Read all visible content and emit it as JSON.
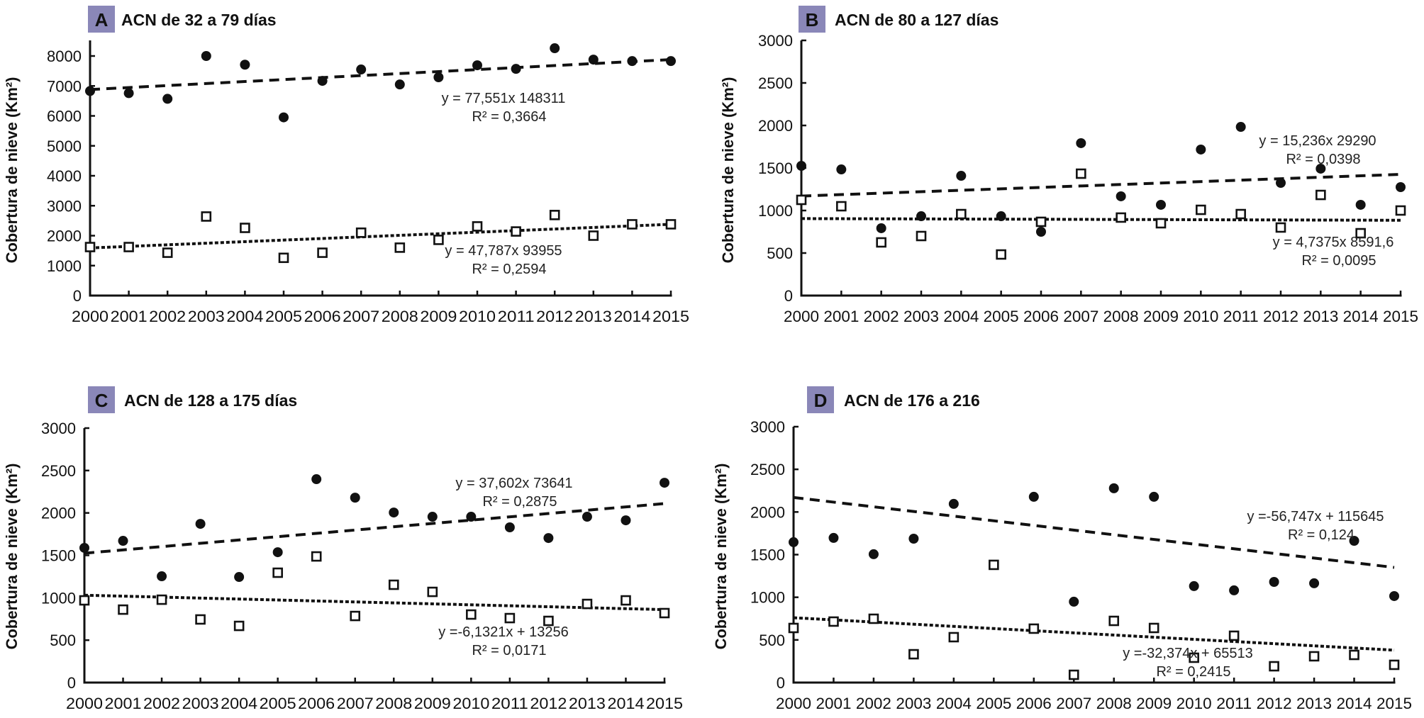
{
  "figure": {
    "badge_color": "#8a87b8",
    "marker_color": "#111111"
  },
  "chart_data": [
    {
      "type": "scatter",
      "panel": "A",
      "title": "ACN de 32 a 79 días",
      "xlabel": "",
      "ylabel": "Cobertura de nieve (Km²)",
      "x": [
        2000,
        2001,
        2002,
        2003,
        2004,
        2005,
        2006,
        2007,
        2008,
        2009,
        2010,
        2011,
        2012,
        2013,
        2014,
        2015
      ],
      "x_tick_labels": [
        "2000",
        "2001",
        "2002",
        "2003",
        "2004",
        "2005",
        "2006",
        "2007",
        "2008",
        "2009",
        "2010",
        "2011",
        "2012",
        "2013",
        "2014",
        "2015"
      ],
      "ylim": [
        0,
        8000
      ],
      "y_ticks": [
        0,
        1000,
        2000,
        3000,
        4000,
        5000,
        6000,
        7000,
        8000
      ],
      "y_tick_labels": [
        "0",
        "1000",
        "2000",
        "3000",
        "4000",
        "5000",
        "6000",
        "7000",
        "8000"
      ],
      "grid": false,
      "series": [
        {
          "name": "filled-circles",
          "marker": "circle-filled",
          "values": [
            6830,
            6760,
            6570,
            8000,
            7710,
            5950,
            7170,
            7550,
            7050,
            7290,
            7690,
            7570,
            8260,
            7880,
            7830,
            7830
          ],
          "trend": {
            "style": "dashed",
            "start": 6880,
            "end": 7880
          },
          "equation": "y = 77,551x 148311",
          "r2": "R² = 0,3664"
        },
        {
          "name": "open-squares",
          "marker": "square-open",
          "values": [
            1620,
            1620,
            1430,
            2640,
            2260,
            1260,
            1430,
            2100,
            1600,
            1860,
            2310,
            2140,
            2690,
            2000,
            2380,
            2380
          ],
          "trend": {
            "style": "dotted",
            "start": 1590,
            "end": 2380
          },
          "equation": "y = 47,787x 93955",
          "r2": "R² = 0,2594"
        }
      ]
    },
    {
      "type": "scatter",
      "panel": "B",
      "title": "ACN de 80  a 127 días",
      "xlabel": "",
      "ylabel": "Cobertura de nieve (Km²)",
      "x": [
        2000,
        2001,
        2002,
        2003,
        2004,
        2005,
        2006,
        2007,
        2008,
        2009,
        2010,
        2011,
        2012,
        2013,
        2014,
        2015
      ],
      "x_tick_labels": [
        "2000",
        "2001",
        "2002",
        "2003",
        "2004",
        "2005",
        "2006",
        "2007",
        "2008",
        "2009",
        "2010",
        "2011",
        "2012",
        "2013",
        "2014",
        "2015"
      ],
      "ylim": [
        0,
        3000
      ],
      "y_ticks": [
        0,
        500,
        1000,
        1500,
        2000,
        2500,
        3000
      ],
      "y_tick_labels": [
        "0",
        "500",
        "1000",
        "1500",
        "2000",
        "2500",
        "3000"
      ],
      "grid": false,
      "series": [
        {
          "name": "filled-circles",
          "marker": "circle-filled",
          "values": [
            1525,
            1483,
            792,
            933,
            1408,
            933,
            750,
            1792,
            1167,
            1067,
            1717,
            1983,
            1325,
            1492,
            1067,
            1275
          ],
          "trend": {
            "style": "dashed",
            "start": 1170,
            "end": 1425
          },
          "equation": "y = 15,236x 29290",
          "r2": "R² = 0,0398"
        },
        {
          "name": "open-squares",
          "marker": "square-open",
          "values": [
            1125,
            1050,
            625,
            700,
            958,
            483,
            867,
            1433,
            917,
            850,
            1008,
            958,
            800,
            1183,
            733,
            1000
          ],
          "trend": {
            "style": "dotted",
            "start": 905,
            "end": 885
          },
          "equation": "y = 4,7375x 8591,6",
          "r2": "R² = 0,0095"
        }
      ]
    },
    {
      "type": "scatter",
      "panel": "C",
      "title": "ACN de 128 a 175 días",
      "xlabel": "",
      "ylabel": "Cobertura de nieve (Km²)",
      "x": [
        2000,
        2001,
        2002,
        2003,
        2004,
        2005,
        2006,
        2007,
        2008,
        2009,
        2010,
        2011,
        2012,
        2013,
        2014,
        2015
      ],
      "x_tick_labels": [
        "2000",
        "2001",
        "2002",
        "2003",
        "2004",
        "2005",
        "2006",
        "2007",
        "2008",
        "2009",
        "2010",
        "2011",
        "2012",
        "2013",
        "2014",
        "2015"
      ],
      "ylim": [
        0,
        3000
      ],
      "y_ticks": [
        0,
        500,
        1000,
        1500,
        2000,
        2500,
        3000
      ],
      "y_tick_labels": [
        "0",
        "500",
        "1000",
        "1500",
        "2000",
        "2500",
        "3000"
      ],
      "grid": false,
      "series": [
        {
          "name": "filled-circles",
          "marker": "circle-filled",
          "values": [
            1588,
            1671,
            1253,
            1871,
            1245,
            1537,
            2398,
            2180,
            2005,
            1955,
            1955,
            1830,
            1704,
            1955,
            1913,
            2356
          ],
          "trend": {
            "style": "dashed",
            "start": 1525,
            "end": 2110
          },
          "equation": "y = 37,602x 73641",
          "r2": "R² = 0,2875"
        },
        {
          "name": "open-squares",
          "marker": "square-open",
          "values": [
            969,
            860,
            977,
            744,
            668,
            1295,
            1487,
            785,
            1153,
            1069,
            802,
            760,
            727,
            927,
            969,
            819
          ],
          "trend": {
            "style": "dotted",
            "start": 1030,
            "end": 860
          },
          "equation": "y =-6,1321x + 13256",
          "r2": "R² = 0,0171"
        }
      ]
    },
    {
      "type": "scatter",
      "panel": "D",
      "title": "ACN de 176 a 216",
      "xlabel": "",
      "ylabel": "Cobertura de nieve (Km²)",
      "x": [
        2000,
        2001,
        2002,
        2003,
        2004,
        2005,
        2006,
        2007,
        2008,
        2009,
        2010,
        2011,
        2012,
        2013,
        2014,
        2015
      ],
      "x_tick_labels": [
        "2000",
        "2001",
        "2002",
        "2003",
        "2004",
        "2005",
        "2006",
        "2007",
        "2008",
        "2009",
        "2010",
        "2011",
        "2012",
        "2013",
        "2014",
        "2015"
      ],
      "ylim": [
        0,
        3000
      ],
      "y_ticks": [
        0,
        500,
        1000,
        1500,
        2000,
        2500,
        3000
      ],
      "y_tick_labels": [
        "0",
        "500",
        "1000",
        "1500",
        "2000",
        "2500",
        "3000"
      ],
      "grid": false,
      "series": [
        {
          "name": "filled-circles",
          "marker": "circle-filled",
          "values": [
            1646,
            1696,
            1505,
            1687,
            2095,
            null,
            2178,
            948,
            2278,
            2178,
            1131,
            1081,
            1180,
            1164,
            1662,
            1014
          ],
          "trend": {
            "style": "dashed",
            "start": 2170,
            "end": 1350
          },
          "equation": "y =-56,747x + 115645",
          "r2": "R² = 0,124"
        },
        {
          "name": "open-squares",
          "marker": "square-open",
          "values": [
            640,
            715,
            748,
            332,
            532,
            1380,
            632,
            91,
            723,
            640,
            291,
            549,
            191,
            308,
            324,
            208
          ],
          "trend": {
            "style": "dotted",
            "start": 760,
            "end": 380
          },
          "equation": "y =-32,374x + 65513",
          "r2": "R² = 0,2415"
        }
      ]
    }
  ]
}
